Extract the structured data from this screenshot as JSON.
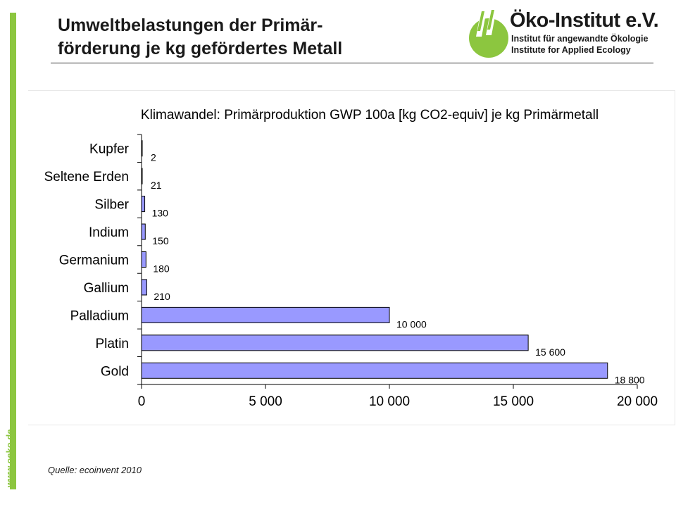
{
  "slide": {
    "title_line1": "Umweltbelastungen der Primär-",
    "title_line2": "förderung je kg gefördertes Metall",
    "source": "Quelle: ecoinvent 2010",
    "side_url": "www.oeko.de"
  },
  "logo": {
    "name": "Öko-Institut e.V.",
    "subtitle_de": "Institut für angewandte Ökologie",
    "subtitle_en": "Institute for Applied Ecology",
    "icon": "oeko-institut-logo-icon",
    "colors": {
      "green": "#8cc63f",
      "text": "#1a1a1a"
    }
  },
  "chart_data": {
    "type": "bar",
    "orientation": "horizontal",
    "title": "Klimawandel: Primärproduktion GWP 100a [kg CO2-equiv] je kg Primärmetall",
    "categories": [
      "Kupfer",
      "Seltene Erden",
      "Silber",
      "Indium",
      "Germanium",
      "Gallium",
      "Palladium",
      "Platin",
      "Gold"
    ],
    "values": [
      2,
      21,
      130,
      150,
      180,
      210,
      10000,
      15600,
      18800
    ],
    "data_labels": [
      "2",
      "21",
      "130",
      "150",
      "180",
      "210",
      "10 000",
      "15 600",
      "18 800"
    ],
    "x_ticks": [
      0,
      5000,
      10000,
      15000,
      20000
    ],
    "x_tick_labels": [
      "0",
      "5 000",
      "10 000",
      "15 000",
      "20 000"
    ],
    "xlim": [
      0,
      20000
    ],
    "grid": false,
    "legend": "none",
    "bar_color": "#9999ff",
    "bar_edge_color": "#000000"
  }
}
